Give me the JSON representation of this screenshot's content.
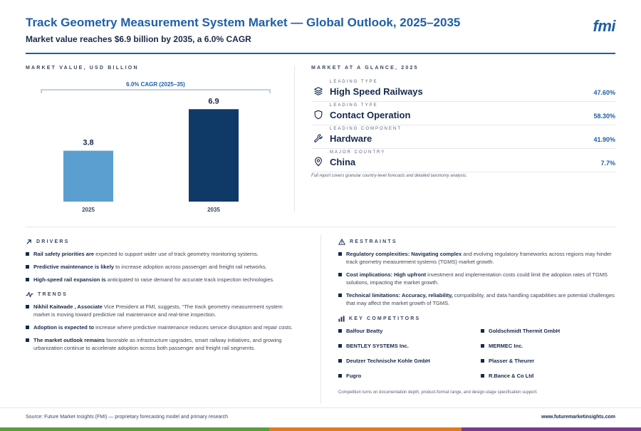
{
  "header": {
    "title": "Track Geometry Measurement System Market — Global Outlook, 2025–2035",
    "subtitle": "Market value reaches $6.9 billion by 2035, a 6.0% CAGR",
    "logo": "fmi"
  },
  "chart_data": {
    "type": "bar",
    "label": "MARKET VALUE, USD BILLION",
    "categories": [
      "2025",
      "2035"
    ],
    "values": [
      3.8,
      6.9
    ],
    "value_labels": [
      "3.8",
      "6.9"
    ],
    "colors": [
      "#5b9fd0",
      "#0f3a68"
    ],
    "annotation": "6.0% CAGR (2025–35)",
    "ylim": [
      0,
      7.5
    ],
    "grid": false
  },
  "glance": {
    "label": "MARKET AT A GLANCE, 2025",
    "items": [
      {
        "category": "LEADING TYPE",
        "name": "High Speed Railways",
        "value": "47.60%",
        "icon": "layers-icon"
      },
      {
        "category": "LEADING TYPE",
        "name": "Contact Operation",
        "value": "58.30%",
        "icon": "shield-icon"
      },
      {
        "category": "LEADING COMPONENT",
        "name": "Hardware",
        "value": "41.90%",
        "icon": "wrench-icon"
      },
      {
        "category": "MAJOR COUNTRY",
        "name": "China",
        "value": "7.7%",
        "icon": "map-pin-icon"
      }
    ],
    "note": "Full report covers granular country-level forecasts and detailed taxonomy analysis."
  },
  "drivers": {
    "label": "DRIVERS",
    "items": [
      {
        "bold": "Rail safety priorities are",
        "text": " expected to support wider use of track geometry monitoring systems."
      },
      {
        "bold": "Predictive maintenance is likely",
        "text": " to increase adoption across passenger and freight rail networks."
      },
      {
        "bold": "High-speed rail expansion is",
        "text": " anticipated to raise demand for accurate track inspection technologies."
      }
    ]
  },
  "trends": {
    "label": "TRENDS",
    "items": [
      {
        "bold": "Nikhil Kaitwade , Associate",
        "text": " Vice President at FMI, suggests, “The track geometry measurement system market is moving toward predictive rail maintenance and real-time inspection."
      },
      {
        "bold": "Adoption is expected to",
        "text": " increase where predictive maintenance reduces service disruption and repair costs."
      },
      {
        "bold": "The market outlook remains",
        "text": " favorable as infrastructure upgrades, smart railway initiatives, and growing urbanization continue to accelerate adoption across both passenger and freight rail segments."
      }
    ]
  },
  "restraints": {
    "label": "RESTRAINTS",
    "items": [
      {
        "bold": "Regulatory complexities: Navigating complex",
        "text": " and evolving regulatory frameworks across regions may hinder track geometry measurement systems (TGMS) market growth."
      },
      {
        "bold": "Cost implications: High upfront",
        "text": " investment and implementation costs could limit the adoption rates of TGMS solutions, impacting the market growth."
      },
      {
        "bold": "Technical limitations: Accuracy, reliability,",
        "text": " compatibility, and data handling capabilities are potential challenges that may affect the market growth of TGMS."
      }
    ]
  },
  "competitors": {
    "label": "KEY COMPETITORS",
    "items": [
      "Balfour Beatty",
      "Goldschmidt Thermit GmbH",
      "BENTLEY SYSTEMS Inc.",
      "MERMEC Inc.",
      "Deutzer Technische Kohle GmbH",
      "Plasser & Theurer",
      "Fugro",
      "R.Bance & Co Ltd"
    ],
    "note": "Competition turns on documentation depth, product-format range, and design-stage specification support."
  },
  "footer": {
    "source": "Source: Future Market Insights (FMI) — proprietary forecasting model and primary research",
    "website": "www.futuremarketinsights.com",
    "strip_colors": [
      "#5a9e3a",
      "#e07b1e",
      "#7a3a8e"
    ]
  }
}
